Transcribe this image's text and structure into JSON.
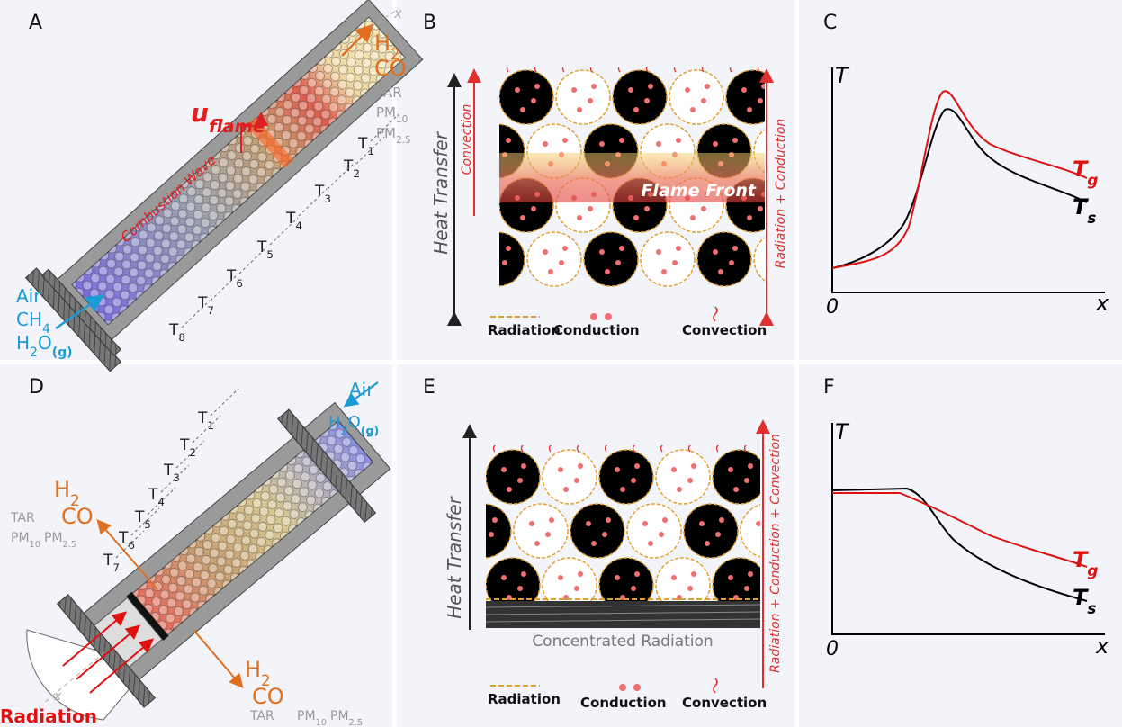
{
  "panel_a": {
    "label": "A",
    "axis_label": "x",
    "products": {
      "h2": {
        "text": "H",
        "sub": "2"
      },
      "co": "CO",
      "tar": "TAR",
      "pm10": {
        "text": "PM",
        "sub": "10"
      },
      "pm25": {
        "text": "PM",
        "sub": "2.5"
      }
    },
    "flame_speed": {
      "text": "u",
      "sub": "flame"
    },
    "wave": "Combustion Wave",
    "thermocouples": [
      {
        "text": "T",
        "sub": "1"
      },
      {
        "text": "T",
        "sub": "2"
      },
      {
        "text": "T",
        "sub": "3"
      },
      {
        "text": "T",
        "sub": "4"
      },
      {
        "text": "T",
        "sub": "5"
      },
      {
        "text": "T",
        "sub": "6"
      },
      {
        "text": "T",
        "sub": "7"
      },
      {
        "text": "T",
        "sub": "8"
      }
    ],
    "inputs": {
      "air": "Air",
      "ch4": {
        "text": "CH",
        "sub": "4"
      },
      "h2o": {
        "text": "H",
        "sub": "2",
        "text2": "O",
        "sub2": "(g)"
      }
    }
  },
  "panel_b": {
    "label": "B",
    "heat_transfer": "Heat Transfer",
    "left_arrow": "Convection",
    "band": "Flame Front",
    "right_arrow": "Radiation + Conduction",
    "legend": {
      "radiation": "Radiation",
      "conduction": "Conduction",
      "convection": "Convection"
    }
  },
  "panel_c": {
    "label": "C",
    "y_label": "T",
    "origin": "0",
    "x_label": "x",
    "gas": {
      "text": "T",
      "sub": "g"
    },
    "solid": {
      "text": "T",
      "sub": "s"
    }
  },
  "panel_d": {
    "label": "D",
    "inputs": {
      "air": "Air",
      "h2o": {
        "text": "H",
        "sub": "2",
        "text2": "O",
        "sub2": "(g)"
      }
    },
    "thermocouples": [
      {
        "text": "T",
        "sub": "1"
      },
      {
        "text": "T",
        "sub": "2"
      },
      {
        "text": "T",
        "sub": "3"
      },
      {
        "text": "T",
        "sub": "4"
      },
      {
        "text": "T",
        "sub": "5"
      },
      {
        "text": "T",
        "sub": "6"
      },
      {
        "text": "T",
        "sub": "7"
      }
    ],
    "products_upper": {
      "h2": {
        "text": "H",
        "sub": "2"
      },
      "co": "CO",
      "tar": "TAR",
      "pm10": {
        "text": "PM",
        "sub": "10"
      },
      "pm25": {
        "text": "PM",
        "sub": "2.5"
      }
    },
    "products_lower": {
      "h2": {
        "text": "H",
        "sub": "2"
      },
      "co": "CO",
      "tar": "TAR",
      "pm10": {
        "text": "PM",
        "sub": "10"
      },
      "pm25": {
        "text": "PM",
        "sub": "2.5"
      }
    },
    "axis_label": "x",
    "source": "Radiation"
  },
  "panel_e": {
    "label": "E",
    "heat_transfer": "Heat Transfer",
    "right_arrow": "Radiation + Conduction + Convection",
    "plate": "Concentrated Radiation",
    "legend": {
      "radiation": "Radiation",
      "conduction": "Conduction",
      "convection": "Convection"
    }
  },
  "panel_f": {
    "label": "F",
    "y_label": "T",
    "origin": "0",
    "x_label": "x",
    "gas": {
      "text": "T",
      "sub": "g"
    },
    "solid": {
      "text": "T",
      "sub": "s"
    }
  }
}
